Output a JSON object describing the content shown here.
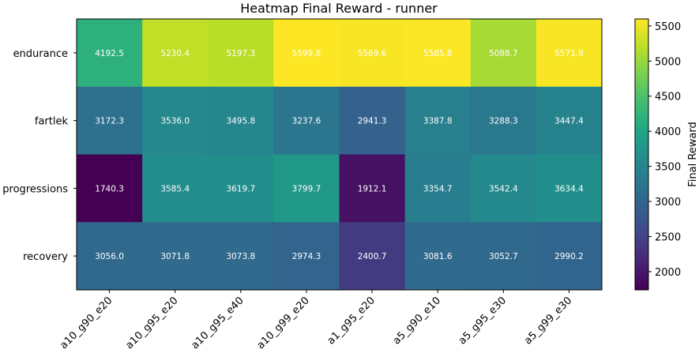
{
  "chart_data": {
    "type": "heatmap",
    "title": "Heatmap Final Reward - runner",
    "rows": [
      "endurance",
      "fartlek",
      "progressions",
      "recovery"
    ],
    "columns": [
      "a10_g90_e20",
      "a10_g95_e20",
      "a10_g95_e40",
      "a10_g99_e20",
      "a1_g95_e20",
      "a5_g90_e10",
      "a5_g95_e30",
      "a5_g99_e30"
    ],
    "values": [
      [
        4192.5,
        5230.4,
        5197.3,
        5599.8,
        5569.6,
        5585.8,
        5088.7,
        5571.9
      ],
      [
        3172.3,
        3536.0,
        3495.8,
        3237.6,
        2941.3,
        3387.8,
        3288.3,
        3447.4
      ],
      [
        1740.3,
        3585.4,
        3619.7,
        3799.7,
        1912.1,
        3354.7,
        3542.4,
        3634.4
      ],
      [
        3056.0,
        3071.8,
        3073.8,
        2974.3,
        2400.7,
        3081.6,
        3052.7,
        2990.2
      ]
    ],
    "value_labels": [
      [
        "4192.5",
        "5230.4",
        "5197.3",
        "5599.8",
        "5569.6",
        "5585.8",
        "5088.7",
        "5571.9"
      ],
      [
        "3172.3",
        "3536.0",
        "3495.8",
        "3237.6",
        "2941.3",
        "3387.8",
        "3288.3",
        "3447.4"
      ],
      [
        "1740.3",
        "3585.4",
        "3619.7",
        "3799.7",
        "1912.1",
        "3354.7",
        "3542.4",
        "3634.4"
      ],
      [
        "3056.0",
        "3071.8",
        "3073.8",
        "2974.3",
        "2400.7",
        "3081.6",
        "3052.7",
        "2990.2"
      ]
    ],
    "colormap": "viridis",
    "vmin": 1740.3,
    "vmax": 5599.8,
    "colorbar": {
      "label": "Final Reward",
      "ticks": [
        2000,
        2500,
        3000,
        3500,
        4000,
        4500,
        5000,
        5500
      ],
      "tick_labels": [
        "2000",
        "2500",
        "3000",
        "3500",
        "4000",
        "4500",
        "5000",
        "5500"
      ],
      "placement": "right"
    }
  }
}
